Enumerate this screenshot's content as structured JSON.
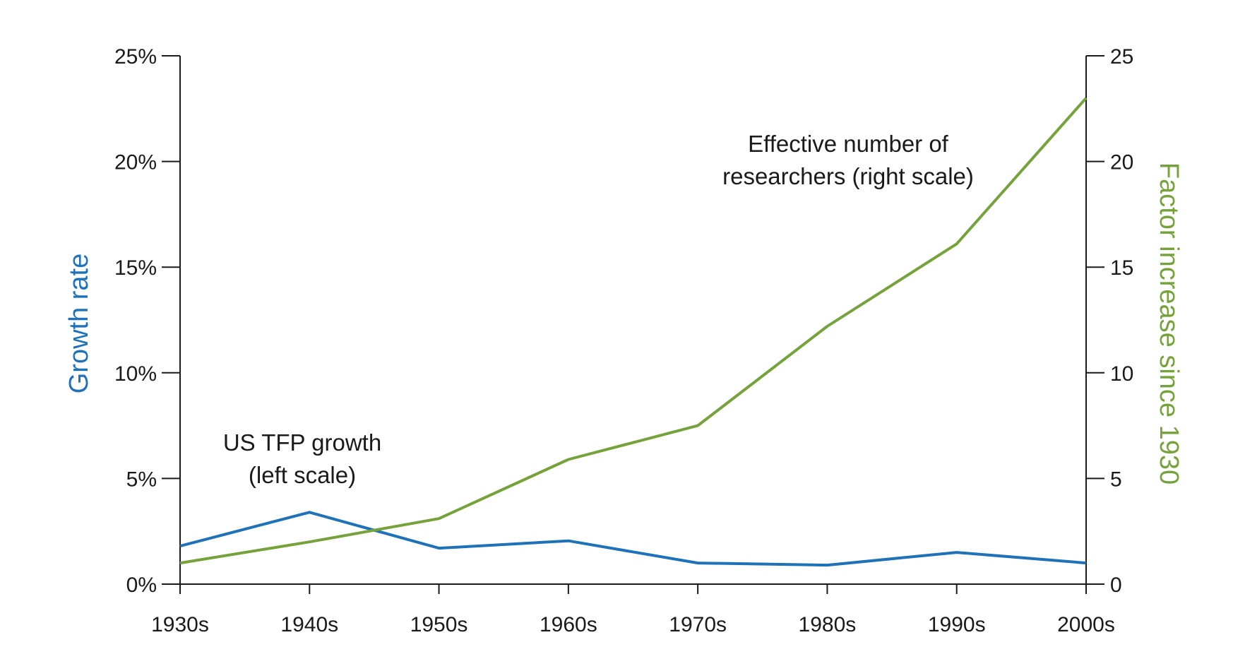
{
  "chart_data": {
    "type": "line",
    "categories": [
      "1930s",
      "1940s",
      "1950s",
      "1960s",
      "1970s",
      "1980s",
      "1990s",
      "2000s"
    ],
    "series": [
      {
        "name": "US TFP growth (left scale)",
        "axis": "left",
        "color": "#1f72b8",
        "values": [
          1.8,
          3.4,
          1.7,
          2.05,
          1.0,
          0.9,
          1.5,
          1.0
        ]
      },
      {
        "name": "Effective number of researchers (right scale)",
        "axis": "right",
        "color": "#76a23c",
        "values": [
          1.0,
          2.0,
          3.1,
          5.9,
          7.5,
          12.2,
          16.1,
          23.0
        ]
      }
    ],
    "left_axis": {
      "label": "Growth rate",
      "color": "#1f72b8",
      "range": [
        0,
        25
      ],
      "ticks": [
        0,
        5,
        10,
        15,
        20,
        25
      ],
      "tick_labels": [
        "0%",
        "5%",
        "10%",
        "15%",
        "20%",
        "25%"
      ]
    },
    "right_axis": {
      "label": "Factor increase since 1930",
      "color": "#76a23c",
      "range": [
        0,
        25
      ],
      "ticks": [
        0,
        5,
        10,
        15,
        20,
        25
      ],
      "tick_labels": [
        "0",
        "5",
        "10",
        "15",
        "20",
        "25"
      ]
    },
    "annotations": {
      "tfp": [
        "US TFP growth",
        "(left scale)"
      ],
      "researchers": [
        "Effective number of",
        "researchers (right scale)"
      ]
    },
    "grid": false,
    "legend": "none"
  }
}
